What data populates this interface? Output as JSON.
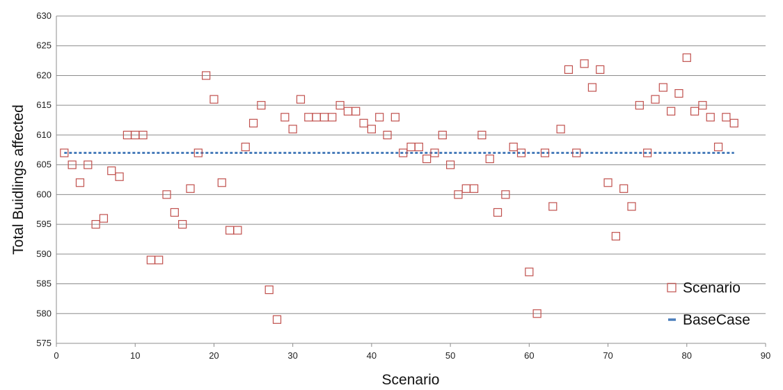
{
  "chart_data": {
    "type": "scatter",
    "title": "",
    "xlabel": "Scenario",
    "ylabel": "Total Buidlings affected",
    "xlim": [
      0,
      90
    ],
    "ylim": [
      575,
      630
    ],
    "x_ticks": [
      0,
      10,
      20,
      30,
      40,
      50,
      60,
      70,
      80,
      90
    ],
    "y_ticks": [
      575,
      580,
      585,
      590,
      595,
      600,
      605,
      610,
      615,
      620,
      625,
      630
    ],
    "grid": "horizontal",
    "legend_position": "bottom-right",
    "series": [
      {
        "name": "Scenario",
        "marker": "hollow-square",
        "color": "#c0504d",
        "x": [
          1,
          2,
          3,
          4,
          5,
          6,
          7,
          8,
          9,
          10,
          11,
          12,
          13,
          14,
          15,
          16,
          17,
          18,
          19,
          20,
          21,
          22,
          23,
          24,
          25,
          26,
          27,
          28,
          29,
          30,
          31,
          32,
          33,
          34,
          35,
          36,
          37,
          38,
          39,
          40,
          41,
          42,
          43,
          44,
          45,
          46,
          47,
          48,
          49,
          50,
          51,
          52,
          53,
          54,
          55,
          56,
          57,
          58,
          59,
          60,
          61,
          62,
          63,
          64,
          65,
          66,
          67,
          68,
          69,
          70,
          71,
          72,
          73,
          74,
          75,
          76,
          77,
          78,
          79,
          80,
          81,
          82,
          83,
          84,
          85,
          86
        ],
        "values": [
          607,
          605,
          602,
          605,
          595,
          596,
          604,
          603,
          610,
          610,
          610,
          589,
          589,
          600,
          597,
          595,
          601,
          607,
          620,
          616,
          602,
          594,
          594,
          608,
          612,
          615,
          584,
          579,
          613,
          611,
          616,
          613,
          613,
          613,
          613,
          615,
          614,
          614,
          612,
          611,
          613,
          610,
          613,
          607,
          608,
          608,
          606,
          607,
          610,
          605,
          600,
          601,
          601,
          610,
          606,
          597,
          600,
          608,
          607,
          587,
          580,
          607,
          598,
          611,
          621,
          607,
          622,
          618,
          621,
          602,
          593,
          601,
          598,
          615,
          607,
          616,
          618,
          614,
          617,
          623,
          614,
          615,
          613,
          608,
          613,
          612
        ]
      },
      {
        "name": "BaseCase",
        "marker": "dashed-line",
        "color": "#4a7ebb",
        "x": [
          1,
          86
        ],
        "values": [
          607,
          607
        ]
      }
    ]
  }
}
